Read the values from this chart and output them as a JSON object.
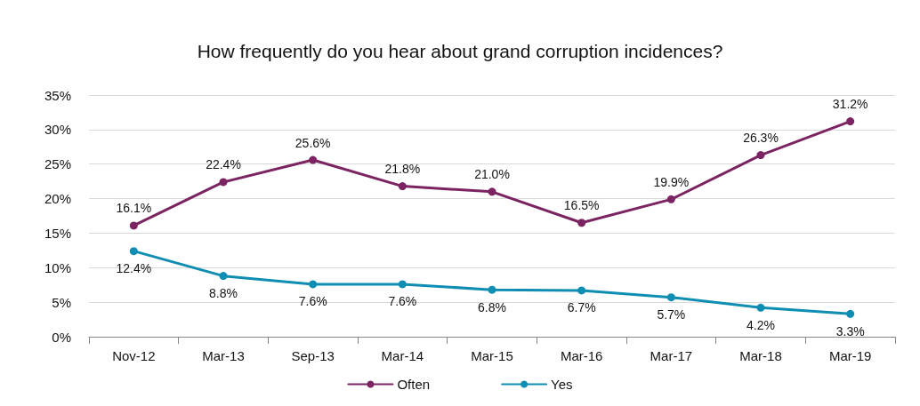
{
  "chart_data": {
    "type": "line",
    "title": "How frequently do you hear about grand corruption incidences?",
    "categories": [
      "Nov-12",
      "Mar-13",
      "Sep-13",
      "Mar-14",
      "Mar-15",
      "Mar-16",
      "Mar-17",
      "Mar-18",
      "Mar-19"
    ],
    "series": [
      {
        "name": "Often",
        "color": "#7b2461",
        "values": [
          16.1,
          22.4,
          25.6,
          21.8,
          21.0,
          16.5,
          19.9,
          26.3,
          31.2
        ],
        "value_labels": [
          "16.1%",
          "22.4%",
          "25.6%",
          "21.8%",
          "21.0%",
          "16.5%",
          "19.9%",
          "26.3%",
          "31.2%"
        ]
      },
      {
        "name": "Yes",
        "color": "#0f8db3",
        "values": [
          12.4,
          8.8,
          7.6,
          7.6,
          6.8,
          6.7,
          5.7,
          4.2,
          3.3
        ],
        "value_labels": [
          "12.4%",
          "8.8%",
          "7.6%",
          "7.6%",
          "6.8%",
          "6.7%",
          "5.7%",
          "4.2%",
          "3.3%"
        ]
      }
    ],
    "ylim": [
      0,
      35
    ],
    "yticks": [
      {
        "value": 0,
        "label": "0%"
      },
      {
        "value": 5,
        "label": "5%"
      },
      {
        "value": 10,
        "label": "10%"
      },
      {
        "value": 15,
        "label": "15%"
      },
      {
        "value": 20,
        "label": "20%"
      },
      {
        "value": 25,
        "label": "25%"
      },
      {
        "value": 30,
        "label": "30%"
      },
      {
        "value": 35,
        "label": "35%"
      }
    ],
    "grid": "y",
    "legend": "bottom",
    "marker": "circle",
    "line_style": "solid"
  }
}
